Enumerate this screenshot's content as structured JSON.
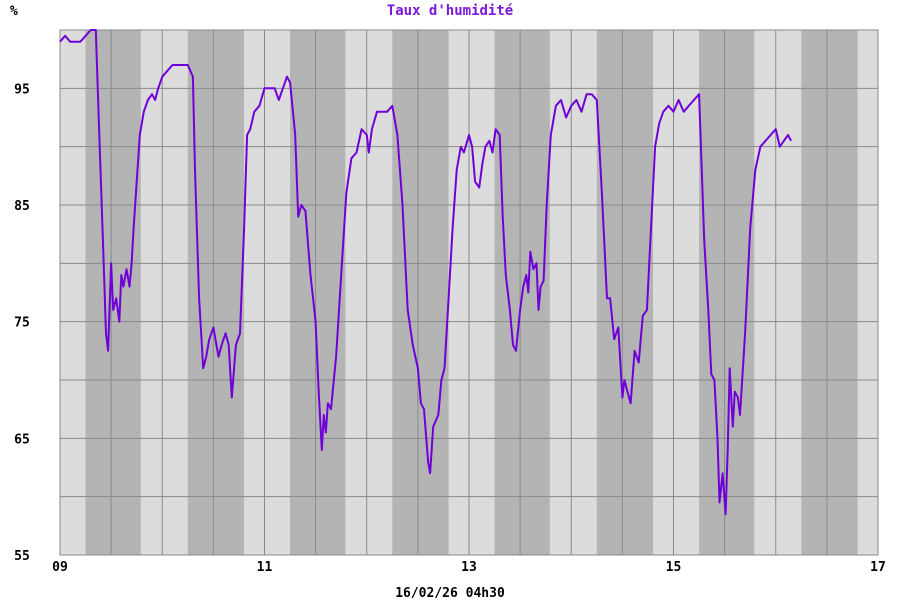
{
  "chart_data": {
    "type": "line",
    "title": "Taux d'humidité",
    "ylabel": "%",
    "xlabel": "16/02/26 04h30",
    "xlim": [
      9,
      17
    ],
    "ylim": [
      55,
      100
    ],
    "x_ticks": [
      "09",
      "11",
      "13",
      "15",
      "17"
    ],
    "x_tick_values": [
      9,
      11,
      13,
      15,
      17
    ],
    "y_ticks": [
      "55",
      "65",
      "75",
      "85",
      "95"
    ],
    "y_tick_values": [
      55,
      65,
      75,
      85,
      95
    ],
    "grid": true,
    "night_bands": [
      [
        9.25,
        9.79
      ],
      [
        10.25,
        10.8
      ],
      [
        11.25,
        11.79
      ],
      [
        12.25,
        12.8
      ],
      [
        13.25,
        13.79
      ],
      [
        14.25,
        14.8
      ],
      [
        15.25,
        15.79
      ],
      [
        16.25,
        16.8
      ]
    ],
    "series": [
      {
        "color": "#7000d8",
        "points": [
          [
            9.0,
            99
          ],
          [
            9.05,
            99.5
          ],
          [
            9.1,
            99
          ],
          [
            9.2,
            99
          ],
          [
            9.25,
            99.5
          ],
          [
            9.3,
            100
          ],
          [
            9.35,
            100
          ],
          [
            9.38,
            92
          ],
          [
            9.42,
            82
          ],
          [
            9.45,
            74
          ],
          [
            9.47,
            72.5
          ],
          [
            9.5,
            80
          ],
          [
            9.52,
            76
          ],
          [
            9.55,
            77
          ],
          [
            9.58,
            75
          ],
          [
            9.6,
            79
          ],
          [
            9.62,
            78
          ],
          [
            9.65,
            79.5
          ],
          [
            9.68,
            78
          ],
          [
            9.7,
            80
          ],
          [
            9.72,
            83
          ],
          [
            9.75,
            87
          ],
          [
            9.78,
            91
          ],
          [
            9.82,
            93
          ],
          [
            9.86,
            94
          ],
          [
            9.9,
            94.5
          ],
          [
            9.93,
            94
          ],
          [
            9.96,
            95
          ],
          [
            10.0,
            96
          ],
          [
            10.05,
            96.5
          ],
          [
            10.1,
            97
          ],
          [
            10.2,
            97
          ],
          [
            10.25,
            97
          ],
          [
            10.3,
            96
          ],
          [
            10.32,
            88
          ],
          [
            10.36,
            77
          ],
          [
            10.4,
            71
          ],
          [
            10.43,
            72
          ],
          [
            10.46,
            73.5
          ],
          [
            10.5,
            74.5
          ],
          [
            10.55,
            72
          ],
          [
            10.58,
            73
          ],
          [
            10.62,
            74
          ],
          [
            10.65,
            73
          ],
          [
            10.68,
            68.5
          ],
          [
            10.72,
            73
          ],
          [
            10.76,
            74
          ],
          [
            10.8,
            83
          ],
          [
            10.83,
            91
          ],
          [
            10.86,
            91.5
          ],
          [
            10.9,
            93
          ],
          [
            10.95,
            93.5
          ],
          [
            11.0,
            95
          ],
          [
            11.05,
            95
          ],
          [
            11.1,
            95
          ],
          [
            11.14,
            94
          ],
          [
            11.18,
            95
          ],
          [
            11.22,
            96
          ],
          [
            11.25,
            95.5
          ],
          [
            11.3,
            91
          ],
          [
            11.33,
            84
          ],
          [
            11.36,
            85
          ],
          [
            11.4,
            84.5
          ],
          [
            11.45,
            79
          ],
          [
            11.5,
            75
          ],
          [
            11.53,
            69
          ],
          [
            11.56,
            64
          ],
          [
            11.58,
            67
          ],
          [
            11.6,
            65.5
          ],
          [
            11.62,
            68
          ],
          [
            11.65,
            67.5
          ],
          [
            11.7,
            72
          ],
          [
            11.75,
            79
          ],
          [
            11.8,
            86
          ],
          [
            11.85,
            89
          ],
          [
            11.9,
            89.5
          ],
          [
            11.95,
            91.5
          ],
          [
            12.0,
            91
          ],
          [
            12.02,
            89.5
          ],
          [
            12.05,
            91.5
          ],
          [
            12.1,
            93
          ],
          [
            12.2,
            93
          ],
          [
            12.25,
            93.5
          ],
          [
            12.3,
            91
          ],
          [
            12.35,
            85
          ],
          [
            12.4,
            76
          ],
          [
            12.45,
            73
          ],
          [
            12.5,
            71
          ],
          [
            12.53,
            68
          ],
          [
            12.56,
            67.5
          ],
          [
            12.6,
            63
          ],
          [
            12.62,
            62
          ],
          [
            12.65,
            66
          ],
          [
            12.7,
            67
          ],
          [
            12.73,
            70
          ],
          [
            12.76,
            71
          ],
          [
            12.8,
            77
          ],
          [
            12.84,
            83
          ],
          [
            12.88,
            88
          ],
          [
            12.92,
            90
          ],
          [
            12.95,
            89.5
          ],
          [
            13.0,
            91
          ],
          [
            13.03,
            90
          ],
          [
            13.06,
            87
          ],
          [
            13.1,
            86.5
          ],
          [
            13.13,
            88.5
          ],
          [
            13.16,
            90
          ],
          [
            13.2,
            90.5
          ],
          [
            13.23,
            89.5
          ],
          [
            13.26,
            91.5
          ],
          [
            13.3,
            91
          ],
          [
            13.33,
            84
          ],
          [
            13.36,
            79
          ],
          [
            13.4,
            76
          ],
          [
            13.43,
            73
          ],
          [
            13.46,
            72.5
          ],
          [
            13.5,
            76
          ],
          [
            13.53,
            78
          ],
          [
            13.56,
            79
          ],
          [
            13.58,
            77.5
          ],
          [
            13.6,
            81
          ],
          [
            13.63,
            79.5
          ],
          [
            13.66,
            80
          ],
          [
            13.68,
            76
          ],
          [
            13.7,
            78
          ],
          [
            13.73,
            78.5
          ],
          [
            13.76,
            85
          ],
          [
            13.8,
            91
          ],
          [
            13.85,
            93.5
          ],
          [
            13.9,
            94
          ],
          [
            13.95,
            92.5
          ],
          [
            14.0,
            93.5
          ],
          [
            14.05,
            94
          ],
          [
            14.1,
            93
          ],
          [
            14.15,
            94.5
          ],
          [
            14.2,
            94.5
          ],
          [
            14.25,
            94
          ],
          [
            14.3,
            86
          ],
          [
            14.35,
            77
          ],
          [
            14.38,
            77
          ],
          [
            14.42,
            73.5
          ],
          [
            14.46,
            74.5
          ],
          [
            14.5,
            68.5
          ],
          [
            14.52,
            70
          ],
          [
            14.55,
            69
          ],
          [
            14.58,
            68
          ],
          [
            14.62,
            72.5
          ],
          [
            14.66,
            71.5
          ],
          [
            14.7,
            75.5
          ],
          [
            14.74,
            76
          ],
          [
            14.78,
            83
          ],
          [
            14.82,
            90
          ],
          [
            14.86,
            92
          ],
          [
            14.9,
            93
          ],
          [
            14.95,
            93.5
          ],
          [
            15.0,
            93
          ],
          [
            15.05,
            94
          ],
          [
            15.1,
            93
          ],
          [
            15.15,
            93.5
          ],
          [
            15.2,
            94
          ],
          [
            15.25,
            94.5
          ],
          [
            15.3,
            82
          ],
          [
            15.34,
            76
          ],
          [
            15.37,
            70.5
          ],
          [
            15.4,
            70
          ],
          [
            15.43,
            65
          ],
          [
            15.45,
            59.5
          ],
          [
            15.48,
            62
          ],
          [
            15.51,
            58.5
          ],
          [
            15.53,
            64
          ],
          [
            15.55,
            71
          ],
          [
            15.58,
            66
          ],
          [
            15.6,
            69
          ],
          [
            15.63,
            68.5
          ],
          [
            15.65,
            67
          ],
          [
            15.7,
            74
          ],
          [
            15.75,
            83
          ],
          [
            15.8,
            88
          ],
          [
            15.85,
            90
          ],
          [
            15.9,
            90.5
          ],
          [
            15.95,
            91
          ],
          [
            16.0,
            91.5
          ],
          [
            16.04,
            90
          ],
          [
            16.08,
            90.5
          ],
          [
            16.12,
            91
          ],
          [
            16.15,
            90.5
          ]
        ]
      }
    ]
  }
}
